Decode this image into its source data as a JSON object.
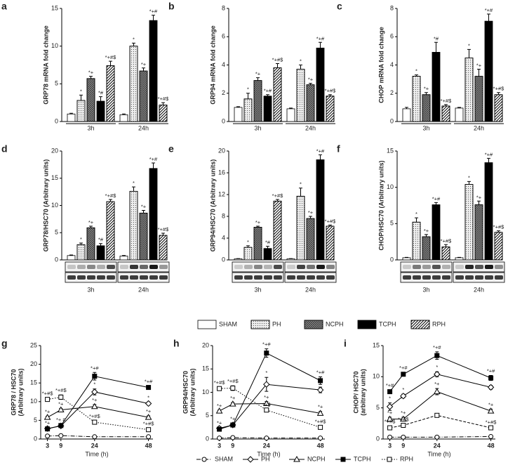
{
  "chart_data": [
    {
      "type": "bar",
      "panel": "a",
      "ylabel": "GRP78 mRNA fold change",
      "categories": [
        "3h",
        "24h"
      ],
      "ylim": [
        0,
        15
      ],
      "yticks": [
        0,
        5,
        10,
        15
      ],
      "series": [
        {
          "name": "SHAM",
          "color": "#ffffff",
          "pattern": "none",
          "values": [
            1,
            0.9
          ],
          "errors": [
            0.1,
            0.1
          ],
          "labels": [
            null,
            null
          ]
        },
        {
          "name": "PH",
          "color": "#eeeeee",
          "pattern": "dots",
          "values": [
            2.8,
            10
          ],
          "errors": [
            0.7,
            0.4
          ],
          "labels": [
            "*",
            "*"
          ]
        },
        {
          "name": "NCPH",
          "color": "#8c8c8c",
          "pattern": "cross",
          "values": [
            5.7,
            6.7
          ],
          "errors": [
            0.3,
            0.4
          ],
          "labels": [
            "*+",
            "*+"
          ]
        },
        {
          "name": "TCPH",
          "color": "#000000",
          "pattern": "none",
          "values": [
            2.7,
            13.4
          ],
          "errors": [
            0.6,
            0.7
          ],
          "labels": [
            "*#",
            "*+#"
          ]
        },
        {
          "name": "RPH",
          "color": "#ffffff",
          "pattern": "hatch",
          "values": [
            7.4,
            2.2
          ],
          "errors": [
            0.6,
            0.3
          ],
          "labels": [
            "*+#$",
            "*+#$"
          ]
        }
      ]
    },
    {
      "type": "bar",
      "panel": "b",
      "ylabel": "GRP94 mRNA fold change",
      "categories": [
        "3h",
        "24h"
      ],
      "ylim": [
        0,
        8
      ],
      "yticks": [
        0,
        2,
        4,
        6,
        8
      ],
      "series": [
        {
          "color": "#ffffff",
          "pattern": "none",
          "values": [
            1,
            0.9
          ],
          "errors": [
            0.05,
            0.05
          ],
          "labels": [
            null,
            null
          ]
        },
        {
          "color": "#eeeeee",
          "pattern": "dots",
          "values": [
            1.6,
            3.7
          ],
          "errors": [
            0.4,
            0.3
          ],
          "labels": [
            "*",
            "*"
          ]
        },
        {
          "color": "#8c8c8c",
          "pattern": "cross",
          "values": [
            2.9,
            2.6
          ],
          "errors": [
            0.2,
            0.1
          ],
          "labels": [
            "*+",
            "*+"
          ]
        },
        {
          "color": "#000000",
          "pattern": "none",
          "values": [
            1.8,
            5.2
          ],
          "errors": [
            0.1,
            0.4
          ],
          "labels": [
            "*+#",
            "*+#"
          ]
        },
        {
          "color": "#ffffff",
          "pattern": "hatch",
          "values": [
            3.8,
            1.8
          ],
          "errors": [
            0.3,
            0.1
          ],
          "labels": [
            "*+#$",
            "*+#$"
          ]
        }
      ]
    },
    {
      "type": "bar",
      "panel": "c",
      "ylabel": "CHOP mRNA fold change",
      "categories": [
        "3h",
        "24h"
      ],
      "ylim": [
        0,
        8
      ],
      "yticks": [
        0,
        2,
        4,
        6,
        8
      ],
      "series": [
        {
          "color": "#ffffff",
          "pattern": "none",
          "values": [
            0.9,
            0.95
          ],
          "errors": [
            0.1,
            0.05
          ],
          "labels": [
            null,
            null
          ]
        },
        {
          "color": "#eeeeee",
          "pattern": "dots",
          "values": [
            3.2,
            4.5
          ],
          "errors": [
            0.1,
            0.6
          ],
          "labels": [
            "*",
            "*"
          ]
        },
        {
          "color": "#8c8c8c",
          "pattern": "cross",
          "values": [
            1.9,
            3.2
          ],
          "errors": [
            0.15,
            0.5
          ],
          "labels": [
            "*+",
            "*+"
          ]
        },
        {
          "color": "#000000",
          "pattern": "none",
          "values": [
            4.9,
            7.1
          ],
          "errors": [
            0.7,
            0.5
          ],
          "labels": [
            "*#",
            "*+#"
          ]
        },
        {
          "color": "#ffffff",
          "pattern": "hatch",
          "values": [
            1.1,
            1.9
          ],
          "errors": [
            0.1,
            0.15
          ],
          "labels": [
            "*+#$",
            "*+#$"
          ]
        }
      ]
    },
    {
      "type": "bar",
      "panel": "d",
      "ylabel": "GRP78/HSC70 (Arbitrary units)",
      "blot_labels": [
        "GRP78",
        "HSC70"
      ],
      "categories": [
        "3h",
        "24h"
      ],
      "ylim": [
        0,
        20
      ],
      "yticks": [
        0,
        5,
        10,
        15,
        20
      ],
      "series": [
        {
          "color": "#ffffff",
          "pattern": "none",
          "values": [
            0.8,
            0.7
          ],
          "errors": [
            0.1,
            0.1
          ],
          "labels": [
            null,
            null
          ]
        },
        {
          "color": "#eeeeee",
          "pattern": "dots",
          "values": [
            2.8,
            12.6
          ],
          "errors": [
            0.3,
            0.8
          ],
          "labels": [
            "*",
            "*"
          ]
        },
        {
          "color": "#8c8c8c",
          "pattern": "cross",
          "values": [
            5.9,
            8.6
          ],
          "errors": [
            0.3,
            0.5
          ],
          "labels": [
            "*+",
            "*+"
          ]
        },
        {
          "color": "#000000",
          "pattern": "none",
          "values": [
            2.6,
            16.8
          ],
          "errors": [
            0.4,
            1.0
          ],
          "labels": [
            "*#",
            "*+#"
          ]
        },
        {
          "color": "#ffffff",
          "pattern": "hatch",
          "values": [
            10.7,
            4.5
          ],
          "errors": [
            0.4,
            0.4
          ],
          "labels": [
            "*+#$",
            "*+#$"
          ]
        }
      ]
    },
    {
      "type": "bar",
      "panel": "e",
      "ylabel": "GRP94/HSC70 (Arbitrary units)",
      "blot_labels": [
        "GRP94",
        "HSC70"
      ],
      "categories": [
        "3h",
        "24h"
      ],
      "ylim": [
        0,
        20
      ],
      "yticks": [
        0,
        4,
        8,
        12,
        16,
        20
      ],
      "series": [
        {
          "color": "#ffffff",
          "pattern": "none",
          "values": [
            0.2,
            0.2
          ],
          "errors": [
            0.05,
            0.05
          ],
          "labels": [
            null,
            null
          ]
        },
        {
          "color": "#eeeeee",
          "pattern": "dots",
          "values": [
            2.3,
            11.7
          ],
          "errors": [
            0.3,
            1.5
          ],
          "labels": [
            "*",
            "*"
          ]
        },
        {
          "color": "#8c8c8c",
          "pattern": "cross",
          "values": [
            6.0,
            7.6
          ],
          "errors": [
            0.2,
            0.4
          ],
          "labels": [
            "*+",
            "*+"
          ]
        },
        {
          "color": "#000000",
          "pattern": "none",
          "values": [
            2.1,
            18.4
          ],
          "errors": [
            0.4,
            0.9
          ],
          "labels": [
            "*#",
            "*+#"
          ]
        },
        {
          "color": "#ffffff",
          "pattern": "hatch",
          "values": [
            10.8,
            6.2
          ],
          "errors": [
            0.3,
            0.2
          ],
          "labels": [
            "*+#$",
            "*+#$"
          ]
        }
      ]
    },
    {
      "type": "bar",
      "panel": "f",
      "ylabel": "CHOP/HSC70 (Arbitrary units)",
      "blot_labels": [
        "CHOP",
        "HSC70"
      ],
      "categories": [
        "3h",
        "24h"
      ],
      "ylim": [
        0,
        15
      ],
      "yticks": [
        0,
        5,
        10,
        15
      ],
      "series": [
        {
          "color": "#ffffff",
          "pattern": "none",
          "values": [
            0.3,
            0.3
          ],
          "errors": [
            0.05,
            0.05
          ],
          "labels": [
            null,
            null
          ]
        },
        {
          "color": "#eeeeee",
          "pattern": "dots",
          "values": [
            5.2,
            10.4
          ],
          "errors": [
            0.6,
            0.4
          ],
          "labels": [
            "*",
            "*"
          ]
        },
        {
          "color": "#8c8c8c",
          "pattern": "cross",
          "values": [
            3.2,
            7.6
          ],
          "errors": [
            0.3,
            0.5
          ],
          "labels": [
            "*+",
            "*+"
          ]
        },
        {
          "color": "#000000",
          "pattern": "none",
          "values": [
            7.6,
            13.4
          ],
          "errors": [
            0.3,
            0.6
          ],
          "labels": [
            "*+#",
            "*+#"
          ]
        },
        {
          "color": "#ffffff",
          "pattern": "hatch",
          "values": [
            1.8,
            3.8
          ],
          "errors": [
            0.3,
            0.2
          ],
          "labels": [
            "*+#$",
            "*+#$"
          ]
        }
      ]
    },
    {
      "type": "line",
      "panel": "g",
      "ylabel": [
        "GRP78 / HSC70",
        "(Arbitrary units)"
      ],
      "xlabel": "Time (h)",
      "x": [
        3,
        9,
        24,
        48
      ],
      "xlim": [
        0,
        50
      ],
      "xticks": [
        3,
        9,
        24,
        48
      ],
      "ylim": [
        0,
        25
      ],
      "yticks": [
        0,
        5,
        10,
        15,
        20,
        25
      ],
      "series": [
        {
          "name": "SHAM",
          "color": "#000000",
          "marker": "circle",
          "fill": "#ffffff",
          "dash": "dashdot",
          "values": [
            0.8,
            0.9,
            0.6,
            0.6
          ],
          "errors": [
            0.1,
            0.1,
            0.1,
            0.1
          ],
          "labels": [
            null,
            null,
            null,
            null
          ]
        },
        {
          "name": "PH",
          "color": "#000000",
          "marker": "diamond",
          "fill": "#ffffff",
          "dash": "solid",
          "values": [
            2.8,
            3.5,
            12.6,
            9.5
          ],
          "errors": [
            0.3,
            0.3,
            0.8,
            0.4
          ],
          "labels": [
            null,
            null,
            "*",
            "*"
          ]
        },
        {
          "name": "NCPH",
          "color": "#000000",
          "marker": "triangle",
          "fill": "#ffffff",
          "dash": "solid",
          "values": [
            5.8,
            7.8,
            8.7,
            5.8
          ],
          "errors": [
            0.3,
            0.4,
            0.5,
            0.4
          ],
          "labels": [
            "*+",
            "*+",
            "*+",
            "*+"
          ]
        },
        {
          "name": "TCPH",
          "color": "#000000",
          "marker": "square",
          "fill": "#000000",
          "dash": "solid",
          "values": [
            2.7,
            3.6,
            16.8,
            13.8
          ],
          "errors": [
            0.4,
            0.3,
            1.0,
            0.4
          ],
          "labels": [
            "*+",
            "*+ #",
            "*+#",
            "*+#"
          ]
        },
        {
          "name": "RPH",
          "color": "#000000",
          "marker": "square",
          "fill": "#ffffff",
          "dash": "dotted",
          "values": [
            10.6,
            11.2,
            4.5,
            2.5
          ],
          "errors": [
            0.4,
            0.6,
            0.4,
            0.4
          ],
          "labels": [
            "*+#$",
            "*+#$",
            "*+#$",
            "*+#$"
          ]
        }
      ]
    },
    {
      "type": "line",
      "panel": "h",
      "ylabel": [
        "GRP94/HSC70",
        "(Arbitrary units)"
      ],
      "xlabel": "Time (h)",
      "x": [
        3,
        9,
        24,
        48
      ],
      "xlim": [
        0,
        50
      ],
      "xticks": [
        3,
        9,
        24,
        48
      ],
      "ylim": [
        0,
        20
      ],
      "yticks": [
        0,
        5,
        10,
        15,
        20
      ],
      "series": [
        {
          "color": "#000000",
          "marker": "circle",
          "fill": "#ffffff",
          "dash": "dashdot",
          "values": [
            0.2,
            0.3,
            0.2,
            0.2
          ],
          "errors": [
            0.1,
            0.1,
            0.1,
            0.1
          ],
          "labels": [
            null,
            null,
            null,
            null
          ]
        },
        {
          "color": "#000000",
          "marker": "diamond",
          "fill": "#ffffff",
          "dash": "solid",
          "values": [
            2.3,
            3.0,
            11.7,
            10.5
          ],
          "errors": [
            0.3,
            0.4,
            1.5,
            0.6
          ],
          "labels": [
            null,
            null,
            "*",
            "*"
          ]
        },
        {
          "color": "#000000",
          "marker": "triangle",
          "fill": "#ffffff",
          "dash": "solid",
          "values": [
            6.0,
            7.5,
            7.6,
            5.5
          ],
          "errors": [
            0.2,
            0.3,
            0.4,
            0.4
          ],
          "labels": [
            "*+",
            "*+",
            "*+",
            "*+"
          ]
        },
        {
          "color": "#000000",
          "marker": "square",
          "fill": "#000000",
          "dash": "solid",
          "values": [
            2.1,
            3.0,
            18.4,
            12.5
          ],
          "errors": [
            0.4,
            0.4,
            0.9,
            0.8
          ],
          "labels": [
            "*+",
            "*+",
            "*+#",
            "*+#"
          ]
        },
        {
          "color": "#000000",
          "marker": "square",
          "fill": "#ffffff",
          "dash": "dotted",
          "values": [
            10.8,
            10.9,
            6.2,
            2.5
          ],
          "errors": [
            0.3,
            0.5,
            0.2,
            0.3
          ],
          "labels": [
            "*+#$",
            "*+#$",
            "*+$",
            "*+#$"
          ]
        }
      ]
    },
    {
      "type": "line",
      "panel": "i",
      "ylabel": [
        "CHOP/ HSC70",
        "(arbitrary units)"
      ],
      "xlabel": "Time (h)",
      "x": [
        3,
        9,
        24,
        48
      ],
      "xlim": [
        0,
        50
      ],
      "xticks": [
        3,
        9,
        24,
        48
      ],
      "ylim": [
        0,
        15
      ],
      "yticks": [
        0,
        5,
        10,
        15
      ],
      "series": [
        {
          "color": "#000000",
          "marker": "circle",
          "fill": "#ffffff",
          "dash": "dashdot",
          "values": [
            0.3,
            0.3,
            0.3,
            0.4
          ],
          "errors": [
            0.05,
            0.05,
            0.05,
            0.05
          ],
          "labels": [
            null,
            null,
            null,
            null
          ]
        },
        {
          "color": "#000000",
          "marker": "diamond",
          "fill": "#ffffff",
          "dash": "solid",
          "values": [
            5.2,
            6.9,
            10.4,
            8.3
          ],
          "errors": [
            0.6,
            0.3,
            0.4,
            0.3
          ],
          "labels": [
            "*",
            "*",
            "*",
            "*"
          ]
        },
        {
          "color": "#000000",
          "marker": "triangle",
          "fill": "#ffffff",
          "dash": "solid",
          "values": [
            3.2,
            3.2,
            7.6,
            4.5
          ],
          "errors": [
            0.3,
            0.3,
            0.5,
            0.3
          ],
          "labels": [
            "*+",
            "*+",
            "*+",
            "*+"
          ]
        },
        {
          "color": "#000000",
          "marker": "square",
          "fill": "#000000",
          "dash": "solid",
          "values": [
            7.6,
            10.4,
            13.4,
            9.8
          ],
          "errors": [
            0.3,
            0.3,
            0.6,
            0.4
          ],
          "labels": [
            "*+#",
            "*+#",
            "*+#",
            "*+#"
          ]
        },
        {
          "color": "#000000",
          "marker": "square",
          "fill": "#ffffff",
          "dash": "dashed",
          "values": [
            1.8,
            2.2,
            3.8,
            1.8
          ],
          "errors": [
            0.3,
            0.2,
            0.2,
            0.2
          ],
          "labels": [
            "*+#$",
            "*+#$",
            null,
            "*+#$"
          ]
        }
      ]
    }
  ]
}
